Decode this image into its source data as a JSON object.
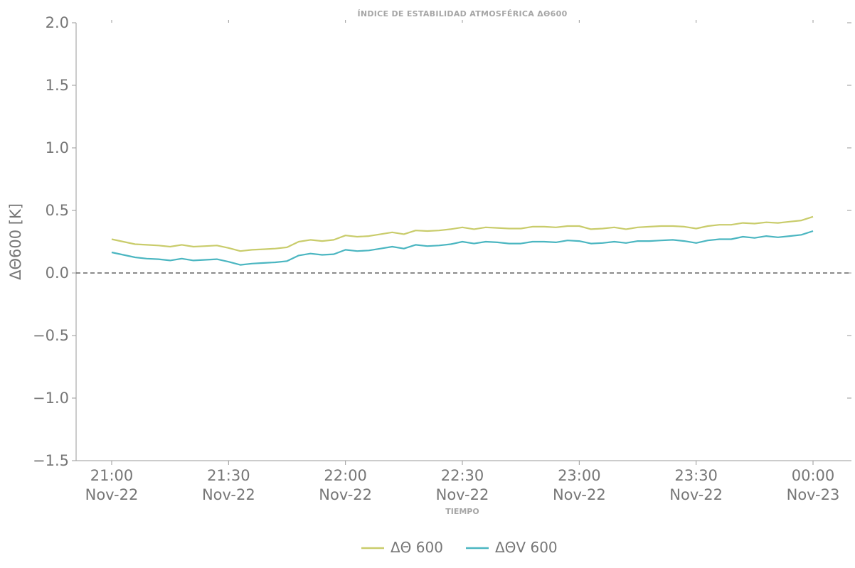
{
  "chart_data": {
    "type": "line",
    "title": "ÍNDICE DE ESTABILIDAD ATMOSFÉRICA ΔΘ600",
    "xlabel": "TIEMPO",
    "ylabel": "ΔΘ600 [K]",
    "x_unit": "minutes",
    "xlim": [
      0,
      183
    ],
    "ylim": [
      -1.5,
      2.0
    ],
    "yticks": [
      2.0,
      1.5,
      1.0,
      0.5,
      0.0,
      -0.5,
      -1.0,
      -1.5
    ],
    "ytick_labels": [
      "2.0",
      "1.5",
      "1.0",
      "0.5",
      "0.0",
      "−0.5",
      "−1.0",
      "−1.5"
    ],
    "xticks": [
      {
        "minute": 0,
        "time": "21:00",
        "date": "Nov-22"
      },
      {
        "minute": 30,
        "time": "21:30",
        "date": "Nov-22"
      },
      {
        "minute": 60,
        "time": "22:00",
        "date": "Nov-22"
      },
      {
        "minute": 90,
        "time": "22:30",
        "date": "Nov-22"
      },
      {
        "minute": 120,
        "time": "23:00",
        "date": "Nov-22"
      },
      {
        "minute": 150,
        "time": "23:30",
        "date": "Nov-22"
      },
      {
        "minute": 180,
        "time": "00:00",
        "date": "Nov-23"
      }
    ],
    "reference_line": {
      "y": 0.0,
      "style": "dashed",
      "color": "#666666"
    },
    "grid": false,
    "legend_position": "bottom-center",
    "x": [
      0,
      3,
      6,
      9,
      12,
      15,
      18,
      21,
      24,
      27,
      30,
      33,
      36,
      39,
      42,
      45,
      48,
      51,
      54,
      57,
      60,
      63,
      66,
      69,
      72,
      75,
      78,
      81,
      84,
      87,
      90,
      93,
      96,
      99,
      102,
      105,
      108,
      111,
      114,
      117,
      120,
      123,
      126,
      129,
      132,
      135,
      138,
      141,
      144,
      147,
      150,
      153,
      156,
      159,
      162,
      165,
      168,
      171,
      174,
      177,
      180
    ],
    "series": [
      {
        "name": "ΔΘ 600",
        "color": "#c9cc6b",
        "values": [
          0.27,
          0.25,
          0.23,
          0.225,
          0.22,
          0.21,
          0.225,
          0.21,
          0.215,
          0.22,
          0.2,
          0.175,
          0.185,
          0.19,
          0.195,
          0.205,
          0.25,
          0.265,
          0.255,
          0.265,
          0.3,
          0.29,
          0.295,
          0.31,
          0.325,
          0.31,
          0.34,
          0.335,
          0.34,
          0.35,
          0.365,
          0.35,
          0.365,
          0.36,
          0.355,
          0.355,
          0.37,
          0.37,
          0.365,
          0.375,
          0.375,
          0.35,
          0.355,
          0.365,
          0.35,
          0.365,
          0.37,
          0.375,
          0.375,
          0.37,
          0.355,
          0.375,
          0.385,
          0.385,
          0.4,
          0.395,
          0.405,
          0.4,
          0.41,
          0.42,
          0.45
        ]
      },
      {
        "name": "ΔΘV 600",
        "color": "#4bb6c1",
        "values": [
          0.165,
          0.145,
          0.125,
          0.115,
          0.11,
          0.1,
          0.115,
          0.1,
          0.105,
          0.11,
          0.09,
          0.065,
          0.075,
          0.08,
          0.085,
          0.095,
          0.14,
          0.155,
          0.145,
          0.15,
          0.185,
          0.175,
          0.18,
          0.195,
          0.21,
          0.195,
          0.225,
          0.215,
          0.22,
          0.23,
          0.25,
          0.235,
          0.25,
          0.245,
          0.235,
          0.235,
          0.25,
          0.25,
          0.245,
          0.26,
          0.255,
          0.235,
          0.24,
          0.25,
          0.24,
          0.255,
          0.255,
          0.26,
          0.265,
          0.255,
          0.24,
          0.26,
          0.27,
          0.27,
          0.29,
          0.28,
          0.295,
          0.285,
          0.295,
          0.305,
          0.335
        ]
      }
    ]
  }
}
